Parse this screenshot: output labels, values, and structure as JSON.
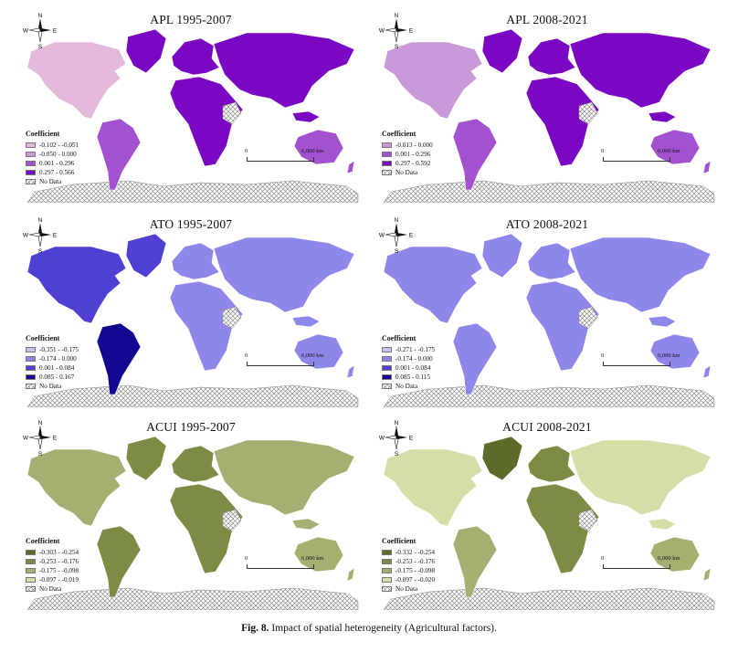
{
  "legend_title": "Coefficient",
  "no_data_label": "No Data",
  "scale": {
    "zero": "0",
    "distance": "6,000 km"
  },
  "compass": {
    "n": "N",
    "s": "S",
    "e": "E",
    "w": "W"
  },
  "panels": [
    {
      "title": "APL 1995-2007",
      "classes": [
        {
          "range": "-0.102 - -0.051",
          "color": "#e3b8da"
        },
        {
          "range": "-0.050 - 0.000",
          "color": "#c89ad9"
        },
        {
          "range": "0.001 - 0.296",
          "color": "#a352cf"
        },
        {
          "range": "0.297 - 0.566",
          "color": "#7a08c2"
        }
      ],
      "regions": {
        "na": 0,
        "sa": 2,
        "eur": 3,
        "afr": 3,
        "asia": 3,
        "aus": 2,
        "green": 3
      }
    },
    {
      "title": "APL 2008-2021",
      "classes": [
        {
          "range": "-0.013 - 0.000",
          "color": "#c89ad9"
        },
        {
          "range": "0.001 - 0.296",
          "color": "#a352cf"
        },
        {
          "range": "0.297 - 0.592",
          "color": "#7a08c2"
        }
      ],
      "regions": {
        "na": 0,
        "sa": 1,
        "eur": 2,
        "afr": 2,
        "asia": 2,
        "aus": 1,
        "green": 2
      }
    },
    {
      "title": "ATO 1995-2007",
      "classes": [
        {
          "range": "-0.351 - -0.175",
          "color": "#c7c3f2"
        },
        {
          "range": "-0.174 - 0.000",
          "color": "#8f86ea"
        },
        {
          "range": "0.001 - 0.084",
          "color": "#4f3fd3"
        },
        {
          "range": "0.085 - 0.167",
          "color": "#12058f"
        }
      ],
      "regions": {
        "na": 2,
        "sa": 3,
        "eur": 1,
        "afr": 1,
        "asia": 1,
        "aus": 1,
        "green": 2
      }
    },
    {
      "title": "ATO 2008-2021",
      "classes": [
        {
          "range": "-0.271 - -0.175",
          "color": "#c7c3f2"
        },
        {
          "range": "-0.174 - 0.000",
          "color": "#8f86ea"
        },
        {
          "range": "0.001 - 0.084",
          "color": "#4f3fd3"
        },
        {
          "range": "0.085 - 0.115",
          "color": "#12058f"
        }
      ],
      "regions": {
        "na": 1,
        "sa": 1,
        "eur": 1,
        "afr": 1,
        "asia": 1,
        "aus": 1,
        "green": 1
      }
    },
    {
      "title": "ACUI 1995-2007",
      "classes": [
        {
          "range": "-0.303 - -0.254",
          "color": "#5a6b2a"
        },
        {
          "range": "-0.253 - -0.176",
          "color": "#7c8c45"
        },
        {
          "range": "-0.175 - -0.098",
          "color": "#a3b071"
        },
        {
          "range": "-0.097 - -0.019",
          "color": "#d3dfa6"
        }
      ],
      "regions": {
        "na": 2,
        "sa": 1,
        "eur": 1,
        "afr": 1,
        "asia": 2,
        "aus": 2,
        "green": 1
      }
    },
    {
      "title": "ACUI 2008-2021",
      "classes": [
        {
          "range": "-0.332 - -0.254",
          "color": "#5a6b2a"
        },
        {
          "range": "-0.253 - -0.176",
          "color": "#7c8c45"
        },
        {
          "range": "-0.175 - -0.098",
          "color": "#a3b071"
        },
        {
          "range": "-0.097 - -0.020",
          "color": "#d3dfa6"
        }
      ],
      "regions": {
        "na": 3,
        "sa": 2,
        "eur": 1,
        "afr": 1,
        "asia": 3,
        "aus": 2,
        "green": 0
      }
    }
  ],
  "caption": {
    "label": "Fig. 8.",
    "text": "Impact of spatial heterogeneity (Agricultural factors)."
  }
}
